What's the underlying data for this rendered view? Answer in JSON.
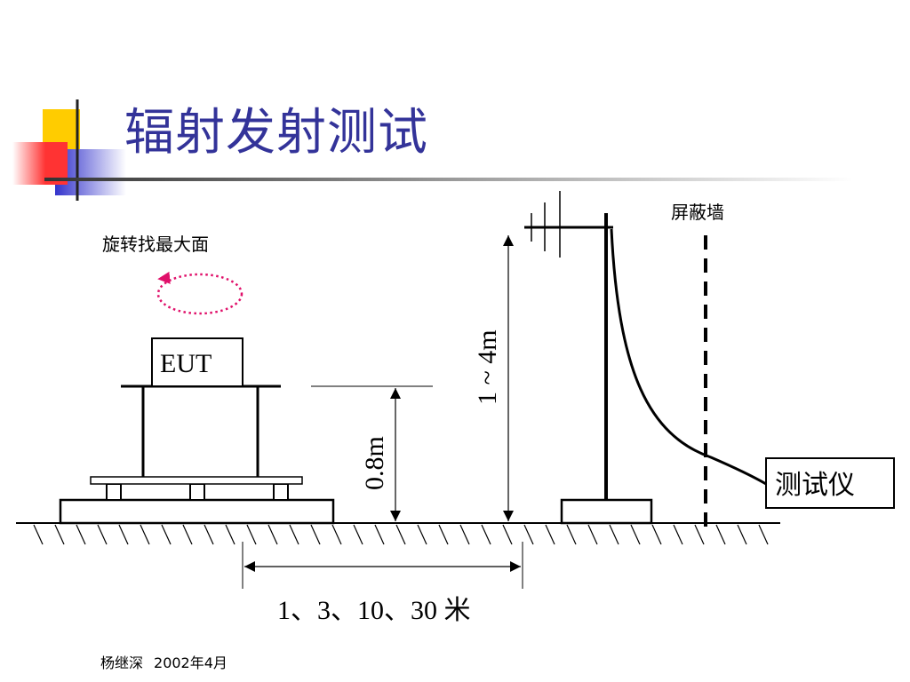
{
  "title": "辐射发射测试",
  "labels": {
    "rotate": "旋转找最大面",
    "eut": "EUT",
    "shield_wall": "屏蔽墙",
    "table_height": "0.8m",
    "antenna_height": "1 ~ 4m",
    "distance": "1、3、10、30  米",
    "receiver": "测试仪"
  },
  "footer": {
    "author": "杨继深",
    "date": "2002年4月"
  },
  "colors": {
    "title": "#333399",
    "rotate_arrow": "#e0106a",
    "logo_yellow": "#ffcc00",
    "logo_red": "#ff3333",
    "logo_blue": "#3333cc"
  }
}
